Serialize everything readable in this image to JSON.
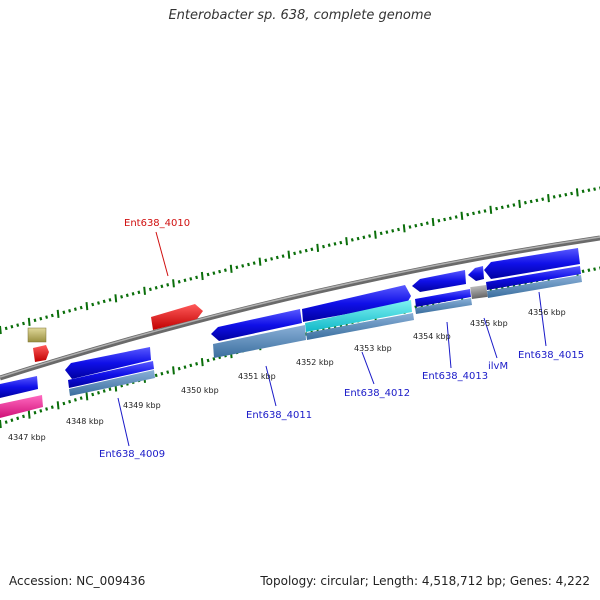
{
  "title": "Enterobacter sp. 638, complete genome",
  "accession": "Accession: NC_009436",
  "topology": "Topology: circular; Length: 4,518,712 bp; Genes: 4,222",
  "colors": {
    "backbone": "#8a8a8a",
    "forward_cds": "#1010e8",
    "reverse_cds": "#1010e8",
    "rna": "#e81010",
    "ticks": "#0a6e0a",
    "gene_label_blue": "#1a1ac8",
    "gene_label_red": "#d01010"
  },
  "ruler": [
    {
      "label": "4347 kbp"
    },
    {
      "label": "4348 kbp"
    },
    {
      "label": "4349 kbp"
    },
    {
      "label": "4350 kbp"
    },
    {
      "label": "4351 kbp"
    },
    {
      "label": "4352 kbp"
    },
    {
      "label": "4353 kbp"
    },
    {
      "label": "4354 kbp"
    },
    {
      "label": "4355 kbp"
    },
    {
      "label": "4356 kbp"
    }
  ],
  "gene_labels": [
    {
      "text": "Ent638_4010"
    },
    {
      "text": "Ent638_4009"
    },
    {
      "text": "Ent638_4011"
    },
    {
      "text": "Ent638_4012"
    },
    {
      "text": "Ent638_4013"
    },
    {
      "text": "ilvM"
    },
    {
      "text": "Ent638_4015"
    }
  ]
}
